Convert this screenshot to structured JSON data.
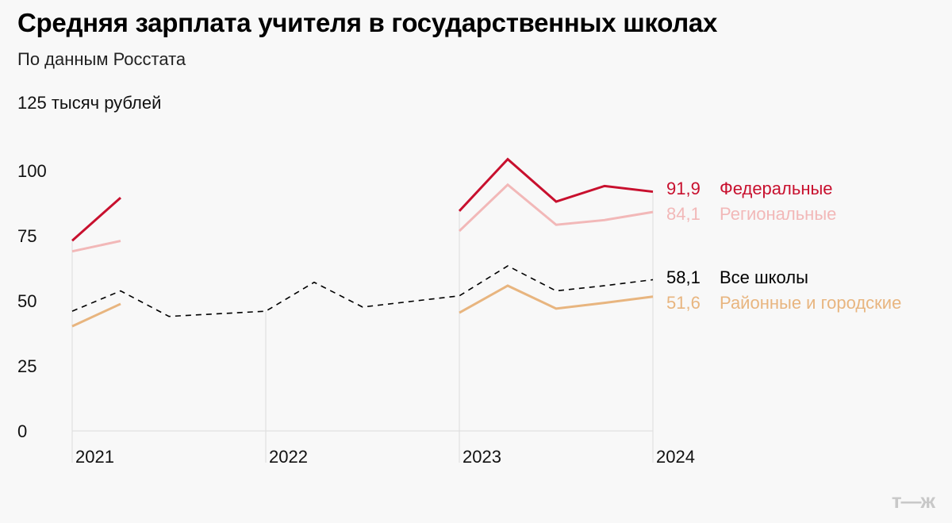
{
  "chart_data": {
    "type": "line",
    "title": "Средняя зарплата учителя в государственных школах",
    "subtitle": "По данным Росстата",
    "ylabel": "125 тысяч рублей",
    "ylim": [
      0,
      125
    ],
    "yticks": [
      "0",
      "25",
      "50",
      "75",
      "100"
    ],
    "xticks": [
      "2021",
      "2022",
      "2023",
      "2024"
    ],
    "x": [
      "2021 Q1",
      "2021 Q2",
      "2021 Q3",
      "2021 Q4",
      "2022 Q1",
      "2022 Q2",
      "2022 Q3",
      "2022 Q4",
      "2023 Q1",
      "2023 Q2",
      "2023 Q3",
      "2023 Q4",
      "2024 Q1"
    ],
    "grid": "vertical at year starts",
    "legend": "right, inline labels at line ends",
    "series": [
      {
        "name": "Федеральные",
        "value_label": "91,9",
        "color": "#c8102e",
        "style": "solid",
        "values": [
          73.1,
          89.6,
          null,
          null,
          null,
          null,
          null,
          null,
          84.5,
          104.4,
          88.1,
          94.1,
          91.9
        ]
      },
      {
        "name": "Региональные",
        "value_label": "84,1",
        "color": "#f2b8b8",
        "style": "solid",
        "values": [
          69.0,
          73.0,
          null,
          null,
          null,
          null,
          null,
          null,
          76.8,
          94.6,
          79.2,
          81.0,
          84.1
        ]
      },
      {
        "name": "Все школы",
        "value_label": "58,1",
        "color": "#000000",
        "style": "dashed",
        "values": [
          46.0,
          53.8,
          44.0,
          null,
          46.0,
          57.1,
          47.6,
          null,
          51.9,
          63.4,
          53.8,
          55.8,
          58.1
        ]
      },
      {
        "name": "Районные и городские",
        "value_label": "51,6",
        "color": "#e8b57f",
        "style": "solid",
        "values": [
          40.2,
          48.8,
          null,
          null,
          null,
          null,
          null,
          null,
          45.4,
          55.8,
          47.0,
          49.2,
          51.6
        ]
      }
    ]
  },
  "logo": "т—ж"
}
